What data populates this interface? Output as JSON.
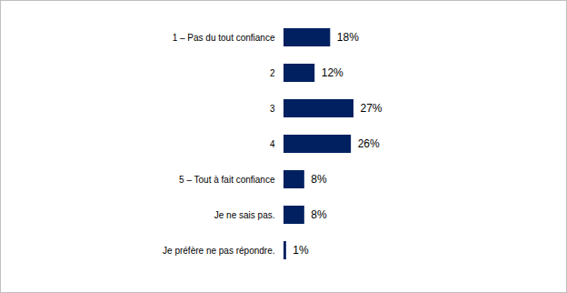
{
  "chart_data": {
    "type": "bar",
    "orientation": "horizontal",
    "categories": [
      "1 – Pas du tout confiance",
      "2",
      "3",
      "4",
      "5 – Tout à fait confiance",
      "Je ne sais pas.",
      "Je préfère ne pas répondre."
    ],
    "values": [
      18,
      12,
      27,
      26,
      8,
      8,
      1
    ],
    "value_labels": [
      "18%",
      "12%",
      "27%",
      "26%",
      "8%",
      "8%",
      "1%"
    ],
    "color": "#002060",
    "data_labels": true,
    "tick_labels": "y",
    "grid": false
  }
}
